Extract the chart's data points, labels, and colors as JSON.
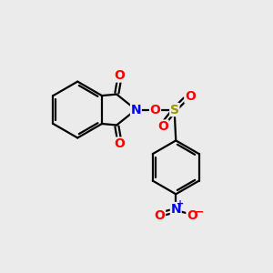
{
  "background_color": "#ebebeb",
  "bond_color": "#000000",
  "N_color": "#0000ff",
  "O_color": "#ff0000",
  "S_color": "#999900",
  "figsize": [
    3.0,
    3.0
  ],
  "dpi": 100,
  "xlim": [
    0,
    10
  ],
  "ylim": [
    0,
    10
  ],
  "lw": 1.6,
  "fs": 10
}
